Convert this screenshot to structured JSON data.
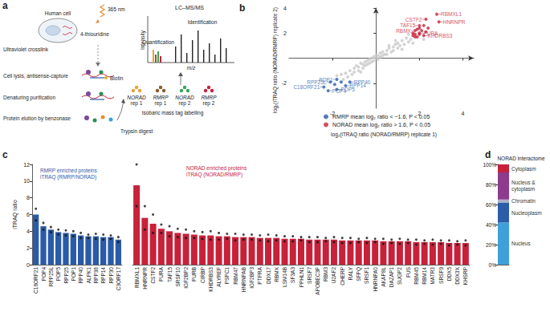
{
  "panel_a": {
    "panel": "a",
    "uv_crosslink": "Ultraviolet crosslink",
    "human_cell": "Human cell",
    "wavelength": "365 nm",
    "thiouridine": "4-thiouridine",
    "lysis": "Cell lysis, antisense-capture",
    "biotin": "Biotin",
    "purification": "Denaturing purification",
    "elution": "Protein elution by benzonase",
    "trypsin": "Trypsin digest",
    "lcms": "LC–MS/MS",
    "quantification": "Quantification",
    "identification": "Identification",
    "intensity": "Intensity",
    "mz": "m/z",
    "labelling": "Isobaric mass tag labelling",
    "samples": [
      {
        "name": "NORAD",
        "rep": "rep 1"
      },
      {
        "name": "RMRP",
        "rep": "rep 1"
      },
      {
        "name": "NORAD",
        "rep": "rep 2"
      },
      {
        "name": "RMRP",
        "rep": "rep 2"
      }
    ]
  },
  "chart_data": [
    {
      "panel": "b",
      "type": "scatter",
      "x_label": "log₂(iTRAQ ratio (NORAD/RMRP) replicate 1)",
      "y_label": "log₂(iTRAQ ratio (NORAD/RMRP) replicate 2)",
      "xlim": [
        -4,
        4.5
      ],
      "ylim": [
        -4,
        4
      ],
      "xticks": [
        -2,
        2,
        4
      ],
      "yticks": [
        -2,
        2,
        4
      ],
      "grid": false,
      "legend": "bottom",
      "series": [
        {
          "color": "#c9c9c9",
          "x": [
            -1.6,
            -1.5,
            -1.4,
            -1.3,
            -1.2,
            -1.1,
            -1.0,
            -1.0,
            -0.9,
            -0.8,
            -0.8,
            -0.7,
            -0.6,
            -0.6,
            -0.5,
            -0.5,
            -0.4,
            -0.4,
            -0.3,
            -0.3,
            -0.2,
            -0.2,
            -0.1,
            -0.1,
            0.0,
            0.0,
            0.1,
            0.1,
            0.2,
            0.2,
            0.3,
            0.3,
            0.4,
            0.5,
            0.5,
            0.6,
            0.7,
            0.8,
            0.8,
            0.9,
            1.0,
            1.0,
            1.1,
            1.2,
            1.3,
            1.4,
            1.5,
            1.6,
            1.2,
            0.6,
            -0.7,
            1.7,
            1.5,
            -1.8,
            2.2,
            0.9
          ],
          "y": [
            -1.3,
            -1.7,
            -1.2,
            -1.5,
            -1.0,
            -1.3,
            -0.8,
            -1.1,
            -0.6,
            -1.0,
            -0.7,
            -0.4,
            -0.8,
            -0.5,
            -0.3,
            -0.6,
            -0.2,
            -0.5,
            -0.1,
            -0.4,
            0.0,
            -0.3,
            0.1,
            -0.2,
            0.0,
            0.2,
            -0.1,
            0.2,
            0.1,
            0.4,
            0.2,
            0.5,
            0.3,
            0.6,
            0.3,
            0.8,
            0.5,
            0.9,
            0.6,
            1.1,
            0.8,
            1.2,
            1.0,
            1.4,
            1.1,
            1.6,
            1.3,
            1.5,
            0.7,
            1.0,
            -1.1,
            1.2,
            1.9,
            -1.4,
            1.5,
            1.4
          ]
        },
        {
          "name": "RMRP mean log₂ ratio < −1.6, P < 0.05",
          "color": "#2a5ba8",
          "x": [
            -1.8,
            -2.1,
            -2.4,
            -2.2,
            -1.8,
            -1.4,
            -1.2,
            -1.6,
            -1.9
          ],
          "y": [
            -1.7,
            -1.9,
            -2.3,
            -2.6,
            -2.5,
            -2.2,
            -1.9,
            -1.9,
            -2.1
          ],
          "labels": [
            "POP1",
            "RPP25L",
            "C18ORF21",
            "POP4",
            "POP5",
            "RPP14",
            "RPP40",
            null,
            null
          ]
        },
        {
          "name": "NORAD mean log₂ ratio > 1.6, P < 0.05",
          "color": "#c8213a",
          "x": [
            2.8,
            2.3,
            2.9,
            2.0,
            1.8,
            2.0,
            2.2,
            1.7,
            1.8,
            1.9,
            2.0,
            1.7,
            2.1,
            1.9,
            2.3,
            2.0,
            1.8,
            2.4,
            2.2
          ],
          "y": [
            3.5,
            3.1,
            2.9,
            2.6,
            2.2,
            2.0,
            1.8,
            1.8,
            1.9,
            1.7,
            1.9,
            2.0,
            2.2,
            2.3,
            2.1,
            2.4,
            1.7,
            2.4,
            2.6
          ],
          "labels": [
            "RBMXL1",
            "CSTF2",
            "HNRNPR",
            "TAF15",
            "RBMX",
            "PURA",
            "KHDRBS3",
            null,
            null,
            null,
            null,
            null,
            null,
            null,
            null,
            null,
            null,
            null,
            null
          ]
        }
      ]
    },
    {
      "panel": "c",
      "type": "bar",
      "title": "RMRP enriched proteins\niTRAQ (RMRP/NORAD)",
      "y_label": "iTRAQ ratio",
      "color": "#2a5ba8",
      "grid": false,
      "ylim": [
        0,
        12
      ],
      "yticks": [
        0,
        2,
        4,
        6,
        8,
        10,
        12
      ],
      "categories": [
        "C18ORF21",
        "POP4",
        "RPP25L",
        "POP5",
        "RPP25",
        "POP1",
        "RPP40",
        "ALPK1",
        "RPP38",
        "RPP14",
        "RPP30",
        "C3ORF17"
      ],
      "values": [
        6.0,
        4.6,
        4.2,
        3.9,
        3.8,
        3.7,
        3.5,
        3.4,
        3.4,
        3.3,
        3.3,
        3.0
      ],
      "replicates": [
        [
          6.7,
          5.3
        ],
        [
          5.0,
          4.2
        ],
        [
          4.5,
          3.9
        ],
        [
          4.2,
          3.6
        ],
        [
          4.1,
          3.5
        ],
        [
          4.0,
          3.4
        ],
        [
          3.8,
          3.2
        ],
        [
          3.6,
          3.2
        ],
        [
          3.7,
          3.1
        ],
        [
          3.6,
          3.0
        ],
        [
          3.5,
          3.1
        ],
        [
          3.3,
          2.7
        ]
      ]
    },
    {
      "type": "bar",
      "title": "NORAD enriched proteins\niTRAQ (NORAD/RMRP)",
      "color": "#c8213a",
      "grid": false,
      "ylim": [
        0,
        12
      ],
      "tick_labels": "x",
      "categories": [
        "RBMXL1",
        "HNRNPR",
        "CSTF2",
        "PURA",
        "TAF15",
        "SRSF10",
        "IGF2BP2",
        "PURB",
        "CIRBP",
        "KHDRBS3",
        "ALYREF",
        "PSPC1",
        "RBM47",
        "HNRNPAB",
        "IGF2BP3",
        "PTPRA",
        "DDX17",
        "RBMX",
        "LSM14B",
        "SF3A3",
        "PPHLN1",
        "SRSF7",
        "APOBEC3F",
        "RBM3",
        "U2AF2",
        "CHERP",
        "RALY",
        "SFPQ",
        "SRSF1",
        "HNRNPA0",
        "AKAP8L",
        "DAZAP1",
        "SUGP2",
        "FUS",
        "RBM45",
        "RBM14",
        "MATR3",
        "SRSF9",
        "DDX5",
        "DDX3X",
        "KHSRP"
      ],
      "values": [
        9.5,
        5.6,
        4.9,
        4.3,
        4.0,
        3.8,
        3.7,
        3.6,
        3.5,
        3.5,
        3.4,
        3.4,
        3.3,
        3.3,
        3.3,
        3.2,
        3.2,
        3.2,
        3.1,
        3.1,
        3.1,
        3.0,
        3.0,
        3.0,
        3.0,
        2.9,
        2.9,
        2.9,
        2.9,
        2.9,
        2.8,
        2.8,
        2.8,
        2.8,
        2.7,
        2.7,
        2.7,
        2.7,
        2.6,
        2.6,
        2.6
      ],
      "replicates": [
        [
          12.0,
          7.0
        ],
        [
          7.0,
          4.2
        ],
        [
          6.0,
          3.8
        ],
        [
          4.8,
          3.8
        ],
        [
          4.6,
          3.4
        ],
        [
          4.3,
          3.3
        ],
        [
          4.2,
          3.2
        ],
        [
          4.0,
          3.2
        ],
        [
          3.9,
          3.1
        ],
        [
          4.0,
          3.0
        ],
        [
          3.8,
          3.0
        ],
        [
          3.7,
          3.1
        ],
        [
          3.7,
          2.9
        ],
        [
          3.6,
          3.0
        ],
        [
          3.6,
          3.0
        ],
        [
          3.5,
          2.9
        ],
        [
          3.6,
          2.8
        ],
        [
          3.5,
          2.9
        ],
        [
          3.4,
          2.8
        ],
        [
          3.4,
          2.8
        ],
        [
          3.3,
          2.9
        ],
        [
          3.3,
          2.7
        ],
        [
          3.3,
          2.7
        ],
        [
          3.2,
          2.8
        ],
        [
          3.3,
          2.7
        ],
        [
          3.2,
          2.6
        ],
        [
          3.2,
          2.6
        ],
        [
          3.1,
          2.7
        ],
        [
          3.2,
          2.6
        ],
        [
          3.1,
          2.7
        ],
        [
          3.1,
          2.5
        ],
        [
          3.0,
          2.6
        ],
        [
          3.1,
          2.5
        ],
        [
          3.0,
          2.6
        ],
        [
          3.0,
          2.4
        ],
        [
          2.9,
          2.5
        ],
        [
          3.0,
          2.4
        ],
        [
          2.9,
          2.5
        ],
        [
          2.9,
          2.3
        ],
        [
          2.8,
          2.4
        ],
        [
          2.9,
          2.3
        ]
      ]
    },
    {
      "panel": "d",
      "type": "bar",
      "stacked": true,
      "title": "NORAD interactome",
      "legend": "right",
      "grid": false,
      "ylim": [
        0,
        100
      ],
      "yticks": [
        {
          "value": 0,
          "label": "0%"
        },
        {
          "value": 20,
          "label": "20%"
        },
        {
          "value": 40,
          "label": "40%"
        },
        {
          "value": 60,
          "label": "60%"
        },
        {
          "value": 80,
          "label": "80%"
        },
        {
          "value": 100,
          "label": "100%"
        }
      ],
      "series": [
        {
          "name": "Nucleus",
          "color": "#3fa0d9",
          "values": [
            42
          ]
        },
        {
          "name": "Nucleoplasm",
          "color": "#2b5da8",
          "values": [
            20
          ]
        },
        {
          "name": "Chromatin",
          "color": "#aab3c5",
          "values": [
            3
          ]
        },
        {
          "name": "Nucleus & cytoplasm",
          "color": "#8e3b8e",
          "values": [
            27
          ]
        },
        {
          "name": "Cytoplasm",
          "color": "#c8213a",
          "values": [
            8
          ]
        }
      ]
    }
  ]
}
